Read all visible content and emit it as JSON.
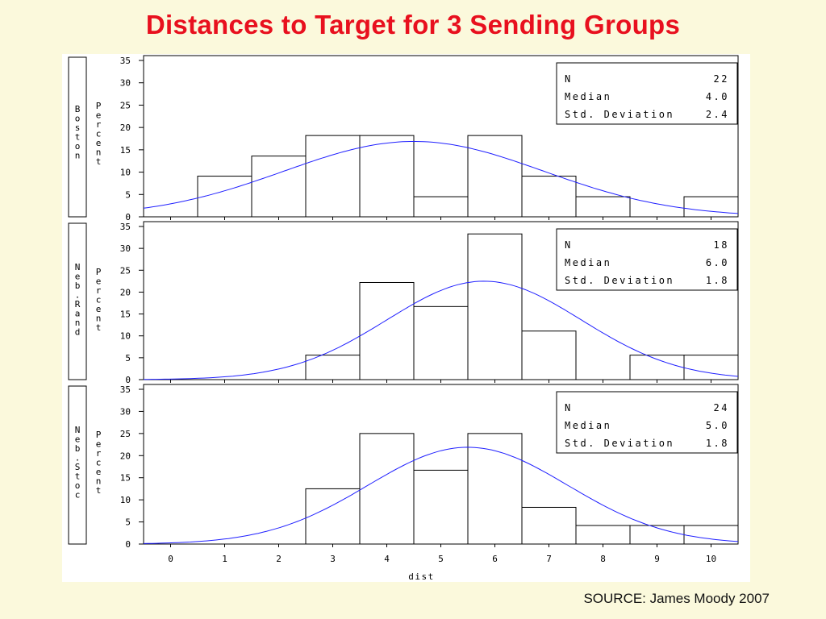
{
  "title": "Distances to Target for 3 Sending Groups",
  "source": "SOURCE: James Moody 2007",
  "chart_data": {
    "type": "bar",
    "xlabel": "dist",
    "ylabel": "Percent",
    "x_ticks": [
      0,
      1,
      2,
      3,
      4,
      5,
      6,
      7,
      8,
      9,
      10
    ],
    "y_ticks": [
      0,
      5,
      10,
      15,
      20,
      25,
      30,
      35
    ],
    "xlim": [
      -0.5,
      10.5
    ],
    "ylim": [
      0,
      35
    ],
    "curve_color": "#2020ff",
    "stat_labels": [
      "N",
      "Median",
      "Std. Deviation"
    ],
    "panels": [
      {
        "group": "Boston",
        "categories": [
          1,
          2,
          3,
          4,
          5,
          6,
          7,
          8,
          10
        ],
        "values": [
          9.1,
          13.6,
          18.2,
          18.2,
          4.5,
          18.2,
          9.1,
          4.5,
          4.5
        ],
        "stats": [
          "22",
          "4.0",
          "2.4"
        ],
        "curve": {
          "mean": 4.5,
          "sd": 2.4,
          "scale": 101.5
        }
      },
      {
        "group": "Neb.Rand",
        "categories": [
          3,
          4,
          5,
          6,
          7,
          9,
          10
        ],
        "values": [
          5.6,
          22.2,
          16.7,
          33.3,
          11.1,
          5.6,
          5.6
        ],
        "stats": [
          "18",
          "6.0",
          "1.8"
        ],
        "curve": {
          "mean": 5.8,
          "sd": 1.8,
          "scale": 101.5
        }
      },
      {
        "group": "Neb.Stoc",
        "categories": [
          3,
          4,
          5,
          6,
          7,
          8,
          9,
          10
        ],
        "values": [
          12.5,
          25,
          16.7,
          25,
          8.3,
          4.2,
          4.2,
          4.2
        ],
        "stats": [
          "24",
          "5.0",
          "1.8"
        ],
        "curve": {
          "mean": 5.5,
          "sd": 1.85,
          "scale": 101.5
        }
      }
    ]
  }
}
